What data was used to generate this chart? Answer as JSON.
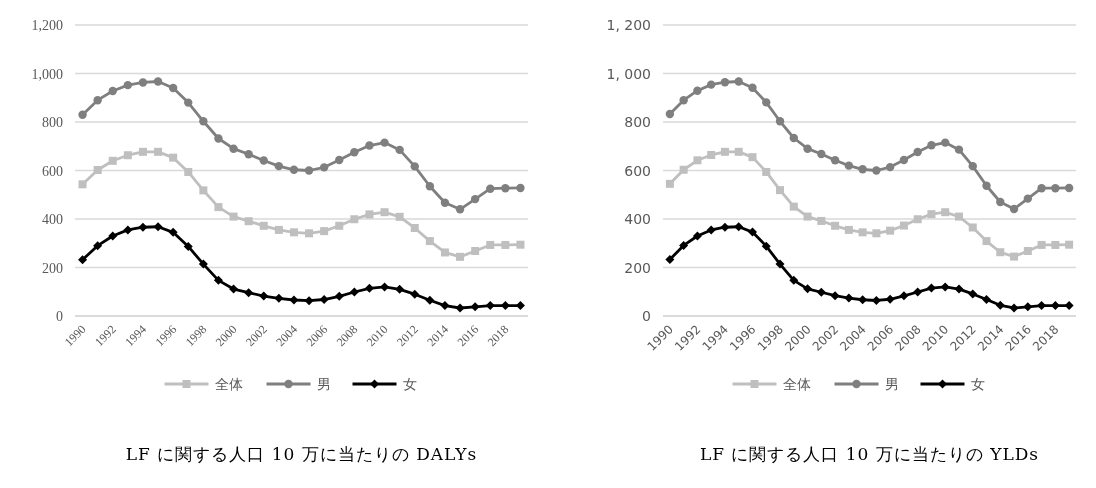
{
  "chart_data": [
    {
      "type": "line",
      "title": "LF に関する人口 10 万に当たりの DALYs",
      "categories": [
        "1990",
        null,
        "1992",
        null,
        "1994",
        null,
        "1996",
        null,
        "1998",
        null,
        "2000",
        null,
        "2002",
        null,
        "2004",
        null,
        "2006",
        null,
        "2008",
        null,
        "2010",
        null,
        "2012",
        null,
        "2014",
        null,
        "2016",
        null,
        "2018",
        null
      ],
      "ylim": [
        0,
        1200
      ],
      "yticks": [
        {
          "value": 0,
          "label": "0"
        },
        {
          "value": 200,
          "label": "200"
        },
        {
          "value": 400,
          "label": "400"
        },
        {
          "value": 600,
          "label": "600"
        },
        {
          "value": 800,
          "label": "800"
        },
        {
          "value": 1000,
          "label": "1,000"
        },
        {
          "value": 1200,
          "label": "1,200"
        }
      ],
      "grid": "y",
      "legend": "bottom",
      "line_style": "solid",
      "series": [
        {
          "name": "全体",
          "color": "#bfbfbf",
          "marker": "square",
          "values": [
            543,
            602,
            640,
            663,
            677,
            677,
            653,
            594,
            518,
            449,
            410,
            391,
            372,
            355,
            345,
            341,
            350,
            372,
            399,
            419,
            428,
            409,
            363,
            309,
            262,
            244,
            268,
            293,
            293,
            294
          ]
        },
        {
          "name": "男",
          "color": "#7f7f7f",
          "marker": "circle",
          "values": [
            830,
            890,
            928,
            952,
            963,
            967,
            940,
            880,
            803,
            732,
            690,
            667,
            641,
            618,
            603,
            600,
            613,
            643,
            675,
            703,
            715,
            685,
            617,
            535,
            467,
            440,
            482,
            525,
            527,
            528
          ]
        },
        {
          "name": "女",
          "color": "#000000",
          "marker": "diamond",
          "values": [
            232,
            290,
            330,
            355,
            366,
            368,
            345,
            287,
            214,
            147,
            111,
            96,
            82,
            73,
            66,
            63,
            68,
            81,
            99,
            114,
            120,
            110,
            90,
            65,
            43,
            33,
            38,
            43,
            43,
            43
          ]
        }
      ]
    },
    {
      "type": "line",
      "title": "LF に関する人口 10 万に当たりの YLDs",
      "categories": [
        "1990",
        null,
        "1992",
        null,
        "1994",
        null,
        "1996",
        null,
        "1998",
        null,
        "2000",
        null,
        "2002",
        null,
        "2004",
        null,
        "2006",
        null,
        "2008",
        null,
        "2010",
        null,
        "2012",
        null,
        "2014",
        null,
        "2016",
        null,
        "2018",
        null
      ],
      "ylim": [
        0,
        1200
      ],
      "yticks": [
        {
          "value": 0,
          "label": "0"
        },
        {
          "value": 200,
          "label": "200"
        },
        {
          "value": 400,
          "label": "400"
        },
        {
          "value": 600,
          "label": "600"
        },
        {
          "value": 800,
          "label": "800"
        },
        {
          "value": 1000,
          "label": "1, 000"
        },
        {
          "value": 1200,
          "label": "1, 200"
        }
      ],
      "grid": "y",
      "legend": "bottom",
      "line_style": "solid",
      "series": [
        {
          "name": "全体",
          "color": "#bfbfbf",
          "marker": "square",
          "values": [
            545,
            603,
            642,
            664,
            677,
            677,
            655,
            594,
            519,
            451,
            410,
            392,
            372,
            355,
            345,
            341,
            352,
            373,
            399,
            420,
            428,
            410,
            365,
            309,
            263,
            245,
            268,
            293,
            293,
            294
          ]
        },
        {
          "name": "男",
          "color": "#7f7f7f",
          "marker": "circle",
          "values": [
            833,
            890,
            929,
            954,
            964,
            967,
            941,
            881,
            803,
            734,
            690,
            668,
            642,
            620,
            605,
            600,
            614,
            643,
            676,
            704,
            715,
            686,
            618,
            537,
            470,
            441,
            484,
            527,
            527,
            528
          ]
        },
        {
          "name": "女",
          "color": "#000000",
          "marker": "diamond",
          "values": [
            233,
            291,
            330,
            355,
            366,
            368,
            346,
            288,
            214,
            147,
            112,
            98,
            84,
            74,
            67,
            64,
            69,
            83,
            99,
            115,
            120,
            111,
            91,
            68,
            44,
            33,
            38,
            43,
            43,
            43
          ]
        }
      ]
    }
  ]
}
